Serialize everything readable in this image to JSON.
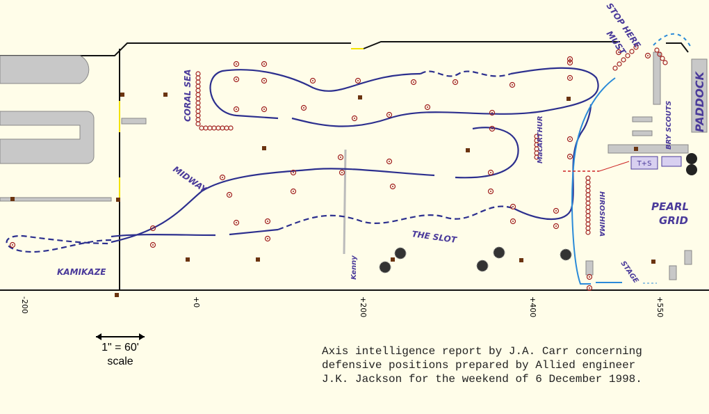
{
  "map": {
    "labels": {
      "must": "MUST",
      "stop_here": "STOP HERE",
      "paddock": "PADDOCK",
      "coral_sea": "CORAL SEA",
      "macarthur": "MacARTHUR",
      "bry_scouts": "BRY SCOUTS",
      "ts": "T+S",
      "pearl": "PEARL",
      "grid": "GRID",
      "hiroshima": "HIROSHIMA",
      "midway": "MIDWAY",
      "the_slot": "THE SLOT",
      "kamikaze": "KAMIKAZE",
      "kenny": "Kenny",
      "stage": "STAGE"
    },
    "distance_marks": [
      "-200",
      "+0",
      "+200",
      "+400",
      "+550"
    ],
    "scale": {
      "ratio": "1\" = 60'",
      "label": "scale"
    },
    "caption": [
      "Axis intelligence report by J.A. Carr concerning",
      "defensive positions prepared by Allied engineer",
      "J.K. Jackson for the weekend of 6 December 1998."
    ]
  }
}
